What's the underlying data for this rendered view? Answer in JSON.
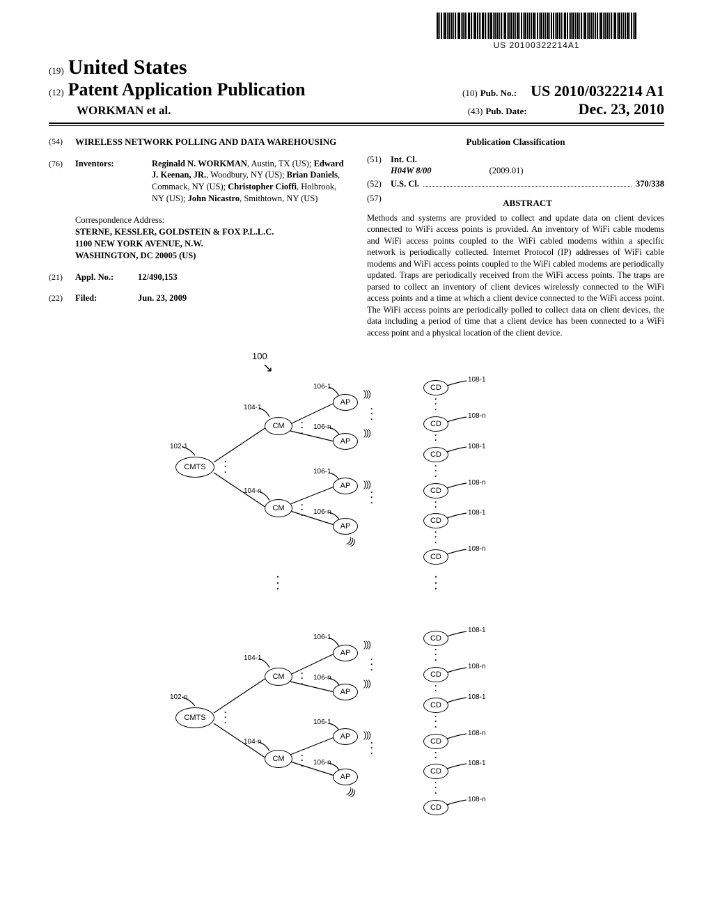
{
  "barcode_number": "US 20100322214A1",
  "header": {
    "code19": "(19)",
    "country": "United States",
    "code12": "(12)",
    "pub_type": "Patent Application Publication",
    "authors": "WORKMAN et al.",
    "code10": "(10)",
    "pub_no_label": "Pub. No.:",
    "pub_no": "US 2010/0322214 A1",
    "code43": "(43)",
    "pub_date_label": "Pub. Date:",
    "pub_date": "Dec. 23, 2010"
  },
  "left": {
    "f54": {
      "code": "(54)",
      "title": "WIRELESS NETWORK POLLING AND DATA WAREHOUSING"
    },
    "f76": {
      "code": "(76)",
      "label": "Inventors:",
      "body_html": "<b>Reginald N. WORKMAN</b>, Austin, TX (US); <b>Edward J. Keenan, JR.</b>, Woodbury, NY (US); <b>Brian Daniels</b>, Commack, NY (US); <b>Christopher Cioffi</b>, Holbrook, NY (US); <b>John Nicastro</b>, Smithtown, NY (US)"
    },
    "corr": {
      "label": "Correspondence Address:",
      "l1": "STERNE, KESSLER, GOLDSTEIN & FOX P.L.L.C.",
      "l2": "1100 NEW YORK AVENUE, N.W.",
      "l3": "WASHINGTON, DC 20005 (US)"
    },
    "f21": {
      "code": "(21)",
      "label": "Appl. No.:",
      "value": "12/490,153"
    },
    "f22": {
      "code": "(22)",
      "label": "Filed:",
      "value": "Jun. 23, 2009"
    }
  },
  "right": {
    "pub_class": "Publication Classification",
    "f51": {
      "code": "(51)",
      "label": "Int. Cl.",
      "cls": "H04W 8/00",
      "year": "(2009.01)"
    },
    "f52": {
      "code": "(52)",
      "label": "U.S. Cl.",
      "value": "370/338"
    },
    "f57": {
      "code": "(57)",
      "label": "ABSTRACT"
    },
    "abstract": "Methods and systems are provided to collect and update data on client devices connected to WiFi access points is provided. An inventory of WiFi cable modems and WiFi access points coupled to the WiFi cabled modems within a specific network is periodically collected. Internet Protocol (IP) addresses of WiFi cable modems and WiFi access points coupled to the WiFi cabled modems are periodically updated. Traps are periodically received from the WiFi access points. The traps are parsed to collect an inventory of client devices wirelessly connected to the WiFi access points and a time at which a client device connected to the WiFi access point. The WiFi access points are periodically polled to collect data on client devices, the data including a period of time that a client device has been connected to a WiFi access point and a physical location of the client device."
  },
  "figure": {
    "ref100": "100",
    "nodes": {
      "cmts": "CMTS",
      "cm": "CM",
      "ap": "AP",
      "cd": "CD"
    },
    "labels": {
      "l102_1": "102-1",
      "l102_n": "102-n",
      "l104_1": "104-1",
      "l104_n": "104-n",
      "l106_1": "106-1",
      "l106_n": "106-n",
      "l108_1": "108-1",
      "l108_n": "108-n"
    },
    "colors": {
      "stroke": "#000000",
      "bg": "#ffffff"
    },
    "node_sizes": {
      "cmts_w": 56,
      "cmts_h": 30,
      "cm_w": 40,
      "cm_h": 26,
      "ap_w": 36,
      "ap_h": 24,
      "cd_w": 36,
      "cd_h": 22
    },
    "font_sizes": {
      "node": 11,
      "label": 10
    }
  }
}
